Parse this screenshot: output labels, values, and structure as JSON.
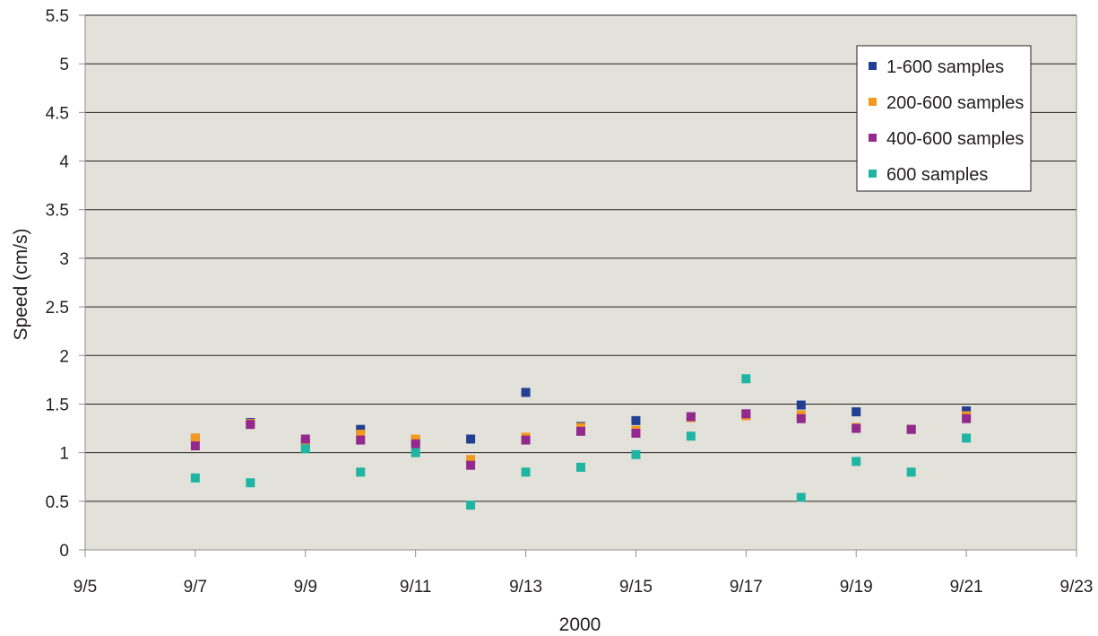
{
  "chart_data": {
    "type": "scatter",
    "title": "",
    "xlabel": "2000",
    "ylabel": "Speed (cm/s)",
    "x_ticks": [
      "9/5",
      "9/7",
      "9/9",
      "9/11",
      "9/13",
      "9/15",
      "9/17",
      "9/19",
      "9/21",
      "9/23"
    ],
    "y_ticks": [
      "0",
      "0.5",
      "1",
      "1.5",
      "2",
      "2.5",
      "3",
      "3.5",
      "4",
      "4.5",
      "5",
      "5.5"
    ],
    "xlim": [
      "9/5",
      "9/23"
    ],
    "ylim": [
      0,
      5.5
    ],
    "grid": "horizontal",
    "legend_position": "top-right",
    "series": [
      {
        "name": "1-600 samples",
        "color": "#233f93",
        "points": [
          {
            "x": "9/7",
            "y": 1.15
          },
          {
            "x": "9/8",
            "y": 1.31
          },
          {
            "x": "9/9",
            "y": 1.1
          },
          {
            "x": "9/10",
            "y": 1.24
          },
          {
            "x": "9/11",
            "y": 1.12
          },
          {
            "x": "9/12",
            "y": 1.14
          },
          {
            "x": "9/13",
            "y": 1.62
          },
          {
            "x": "9/14",
            "y": 1.27
          },
          {
            "x": "9/15",
            "y": 1.33
          },
          {
            "x": "9/16",
            "y": 1.37
          },
          {
            "x": "9/17",
            "y": 1.39
          },
          {
            "x": "9/18",
            "y": 1.49
          },
          {
            "x": "9/19",
            "y": 1.42
          },
          {
            "x": "9/20",
            "y": 1.24
          },
          {
            "x": "9/21",
            "y": 1.43
          }
        ]
      },
      {
        "name": "200-600 samples",
        "color": "#f39a1e",
        "points": [
          {
            "x": "9/7",
            "y": 1.15
          },
          {
            "x": "9/8",
            "y": 1.3
          },
          {
            "x": "9/9",
            "y": 1.08
          },
          {
            "x": "9/10",
            "y": 1.19
          },
          {
            "x": "9/11",
            "y": 1.14
          },
          {
            "x": "9/12",
            "y": 0.93
          },
          {
            "x": "9/13",
            "y": 1.16
          },
          {
            "x": "9/14",
            "y": 1.26
          },
          {
            "x": "9/15",
            "y": 1.23
          },
          {
            "x": "9/16",
            "y": 1.36
          },
          {
            "x": "9/17",
            "y": 1.38
          },
          {
            "x": "9/18",
            "y": 1.39
          },
          {
            "x": "9/19",
            "y": 1.26
          },
          {
            "x": "9/20",
            "y": 1.24
          },
          {
            "x": "9/21",
            "y": 1.38
          }
        ]
      },
      {
        "name": "400-600 samples",
        "color": "#93298e",
        "points": [
          {
            "x": "9/7",
            "y": 1.07
          },
          {
            "x": "9/8",
            "y": 1.29
          },
          {
            "x": "9/9",
            "y": 1.14
          },
          {
            "x": "9/10",
            "y": 1.13
          },
          {
            "x": "9/11",
            "y": 1.09
          },
          {
            "x": "9/12",
            "y": 0.87
          },
          {
            "x": "9/13",
            "y": 1.13
          },
          {
            "x": "9/14",
            "y": 1.22
          },
          {
            "x": "9/15",
            "y": 1.2
          },
          {
            "x": "9/16",
            "y": 1.37
          },
          {
            "x": "9/17",
            "y": 1.4
          },
          {
            "x": "9/18",
            "y": 1.35
          },
          {
            "x": "9/19",
            "y": 1.25
          },
          {
            "x": "9/20",
            "y": 1.24
          },
          {
            "x": "9/21",
            "y": 1.35
          }
        ]
      },
      {
        "name": "600 samples",
        "color": "#1eb5a3",
        "points": [
          {
            "x": "9/7",
            "y": 0.74
          },
          {
            "x": "9/8",
            "y": 0.69
          },
          {
            "x": "9/9",
            "y": 1.04
          },
          {
            "x": "9/10",
            "y": 0.8
          },
          {
            "x": "9/11",
            "y": 1.0
          },
          {
            "x": "9/12",
            "y": 0.46
          },
          {
            "x": "9/13",
            "y": 0.8
          },
          {
            "x": "9/14",
            "y": 0.85
          },
          {
            "x": "9/15",
            "y": 0.98
          },
          {
            "x": "9/16",
            "y": 1.17
          },
          {
            "x": "9/17",
            "y": 1.76
          },
          {
            "x": "9/18",
            "y": 0.54
          },
          {
            "x": "9/19",
            "y": 0.91
          },
          {
            "x": "9/20",
            "y": 0.8
          },
          {
            "x": "9/21",
            "y": 1.15
          }
        ]
      }
    ]
  },
  "colors": {
    "plot_background": "#e3e2da",
    "gridline": "#231f20",
    "axis": "#8c8c8c"
  }
}
